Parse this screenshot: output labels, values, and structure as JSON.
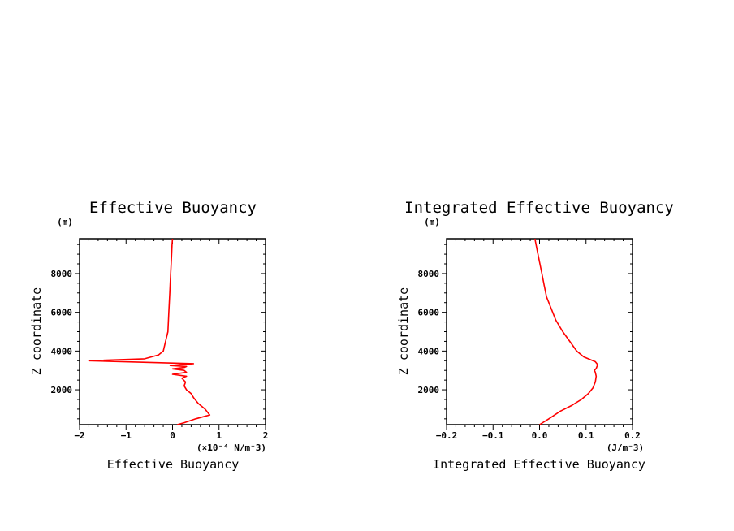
{
  "chart_data": [
    {
      "type": "line",
      "title": "Effective Buoyancy",
      "xlabel": "Effective Buoyancy",
      "ylabel": "Z coordinate",
      "x_unit": "(×10⁻⁴ N/m⁻3)",
      "y_unit": "(m)",
      "xlim": [
        -2,
        2
      ],
      "ylim": [
        200,
        9800
      ],
      "x_ticks": [
        -2,
        -1,
        0,
        1,
        2
      ],
      "x_tick_labels": [
        "−2",
        "−1",
        "0",
        "1",
        "2"
      ],
      "y_ticks": [
        2000,
        4000,
        6000,
        8000
      ],
      "y_tick_labels": [
        "2000",
        "4000",
        "6000",
        "8000"
      ],
      "grid": false,
      "line_color": "#ff0000",
      "series": [
        {
          "x": [
            0.1,
            0.25,
            0.5,
            0.8,
            0.7,
            0.55,
            0.45,
            0.4,
            0.3,
            0.25,
            0.28,
            0.2,
            0.3,
            0.0,
            0.3,
            0.25,
            0.0,
            0.25,
            0.3,
            -0.05,
            0.45,
            -1.8,
            -0.6,
            -0.45,
            -0.3,
            -0.2,
            -0.15,
            -0.1,
            -0.08,
            -0.06,
            -0.04,
            -0.02,
            -0.01,
            0.0
          ],
          "y": [
            200,
            300,
            500,
            700,
            1000,
            1300,
            1600,
            1800,
            2000,
            2200,
            2400,
            2600,
            2700,
            2800,
            2900,
            3000,
            3080,
            3150,
            3200,
            3250,
            3350,
            3500,
            3600,
            3700,
            3800,
            4000,
            4500,
            5000,
            6000,
            7000,
            8000,
            9000,
            9500,
            9800
          ]
        }
      ]
    },
    {
      "type": "line",
      "title": "Integrated Effective Buoyancy",
      "xlabel": "Integrated Effective Buoyancy",
      "ylabel": "Z coordinate",
      "x_unit": "(J/m⁻3)",
      "y_unit": "(m)",
      "xlim": [
        -0.2,
        0.2
      ],
      "ylim": [
        200,
        9800
      ],
      "x_ticks": [
        -0.2,
        -0.1,
        0.0,
        0.1,
        0.2
      ],
      "x_tick_labels": [
        "−0.2",
        "−0.1",
        "0.0",
        "0.1",
        "0.2"
      ],
      "y_ticks": [
        2000,
        4000,
        6000,
        8000
      ],
      "y_tick_labels": [
        "2000",
        "4000",
        "6000",
        "8000"
      ],
      "grid": false,
      "line_color": "#ff0000",
      "series": [
        {
          "x": [
            0.0,
            0.02,
            0.045,
            0.07,
            0.09,
            0.105,
            0.115,
            0.12,
            0.122,
            0.12,
            0.118,
            0.122,
            0.125,
            0.12,
            0.11,
            0.095,
            0.08,
            0.065,
            0.05,
            0.035,
            0.025,
            0.015,
            0.01,
            0.005,
            0.0,
            -0.005,
            -0.01
          ],
          "y": [
            200,
            500,
            900,
            1200,
            1500,
            1800,
            2100,
            2400,
            2700,
            2900,
            3000,
            3100,
            3300,
            3450,
            3550,
            3700,
            4000,
            4500,
            5000,
            5600,
            6200,
            6800,
            7400,
            8000,
            8600,
            9200,
            9800
          ]
        }
      ]
    }
  ]
}
